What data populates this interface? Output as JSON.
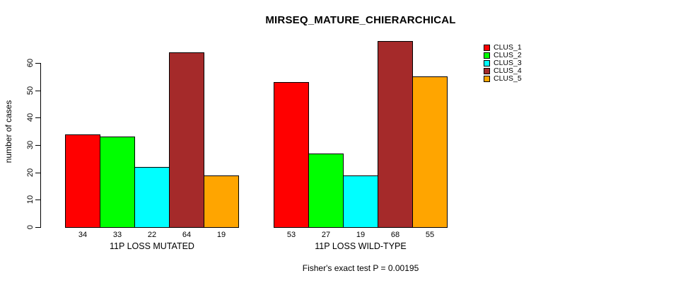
{
  "title": "MIRSEQ_MATURE_CHIERARCHICAL",
  "footer": "Fisher's exact test P = 0.00195",
  "chart_data": {
    "type": "bar",
    "title": "MIRSEQ_MATURE_CHIERARCHICAL",
    "xlabel": "",
    "ylabel": "number of cases",
    "yticks": [
      0,
      10,
      20,
      30,
      40,
      50,
      60
    ],
    "ylim": [
      0,
      68
    ],
    "grid": false,
    "legend_position": "right",
    "bar_value_labels": true,
    "categories": [
      "11P LOSS MUTATED",
      "11P LOSS WILD-TYPE"
    ],
    "series": [
      {
        "name": "CLUS_1",
        "color": "#FF0000",
        "values": [
          34,
          53
        ]
      },
      {
        "name": "CLUS_2",
        "color": "#00FF00",
        "values": [
          33,
          27
        ]
      },
      {
        "name": "CLUS_3",
        "color": "#00FFFF",
        "values": [
          22,
          19
        ]
      },
      {
        "name": "CLUS_4",
        "color": "#A52A2A",
        "values": [
          64,
          68
        ]
      },
      {
        "name": "CLUS_5",
        "color": "#FFA500",
        "values": [
          19,
          55
        ]
      }
    ],
    "annotation": "Fisher's exact test P = 0.00195"
  }
}
